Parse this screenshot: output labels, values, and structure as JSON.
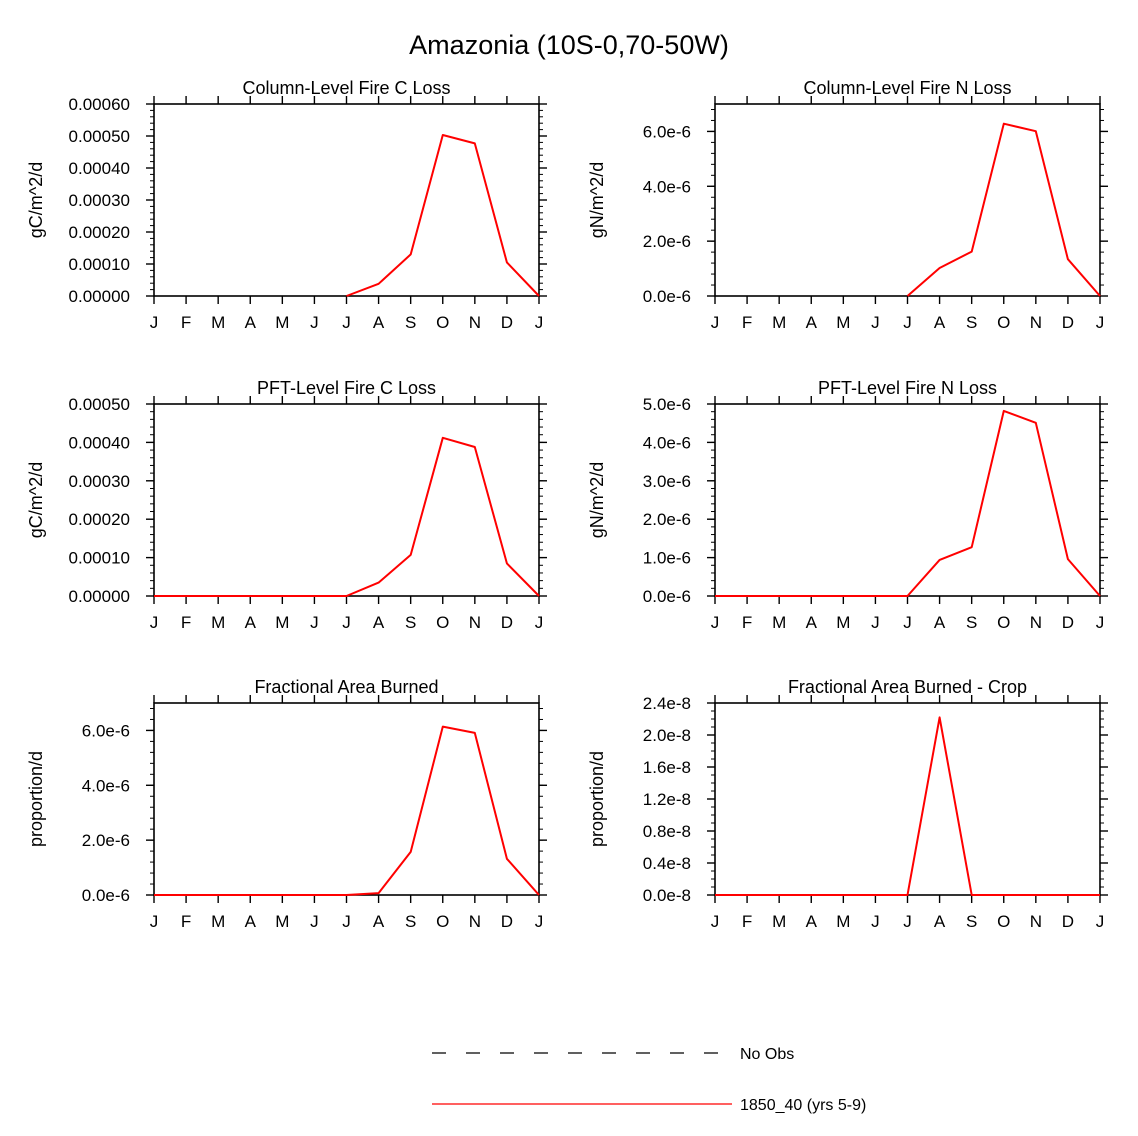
{
  "figure": {
    "title": "Amazonia (10S-0,70-50W)"
  },
  "colors": {
    "series": "#ff0000",
    "axis": "#000000",
    "obs": "#000000"
  },
  "months": [
    "J",
    "F",
    "M",
    "A",
    "M",
    "J",
    "J",
    "A",
    "S",
    "O",
    "N",
    "D",
    "J"
  ],
  "chart_data": [
    {
      "type": "line",
      "title": "Column-Level Fire C Loss",
      "ylabel": "gC/m^2/d",
      "ylim": [
        0,
        0.0006
      ],
      "yticks": [
        0,
        0.0001,
        0.0002,
        0.0003,
        0.0004,
        0.0005,
        0.0006
      ],
      "yticklabels": [
        "0.00000",
        "0.00010",
        "0.00020",
        "0.00030",
        "0.00040",
        "0.00050",
        "0.00060"
      ],
      "minor_per_major": 5,
      "start_index": 6,
      "series": [
        {
          "name": "1850_40 (yrs 5-9)",
          "values": [
            0,
            0,
            0,
            0,
            0,
            0,
            0,
            3.8e-05,
            0.00013,
            0.000503,
            0.000477,
            0.000105,
            0
          ]
        }
      ]
    },
    {
      "type": "line",
      "title": "Column-Level Fire N Loss",
      "ylabel": "gN/m^2/d",
      "ylim": [
        0,
        7e-06
      ],
      "yticks": [
        0,
        2e-06,
        4e-06,
        6e-06
      ],
      "yticklabels": [
        "0.0e-6",
        "2.0e-6",
        "4.0e-6",
        "6.0e-6"
      ],
      "minor_per_major": 5,
      "start_index": 6,
      "series": [
        {
          "name": "1850_40 (yrs 5-9)",
          "values": [
            0,
            0,
            0,
            0,
            0,
            0,
            0,
            1.02e-06,
            1.62e-06,
            6.28e-06,
            6.01e-06,
            1.34e-06,
            0
          ]
        }
      ]
    },
    {
      "type": "line",
      "title": "PFT-Level Fire C Loss",
      "ylabel": "gC/m^2/d",
      "ylim": [
        0,
        0.0005
      ],
      "yticks": [
        0,
        0.0001,
        0.0002,
        0.0003,
        0.0004,
        0.0005
      ],
      "yticklabels": [
        "0.00000",
        "0.00010",
        "0.00020",
        "0.00030",
        "0.00040",
        "0.00050"
      ],
      "minor_per_major": 5,
      "start_index": 0,
      "series": [
        {
          "name": "1850_40 (yrs 5-9)",
          "values": [
            0,
            0,
            0,
            0,
            0,
            0,
            0,
            3.5e-05,
            0.000107,
            0.000412,
            0.000388,
            8.5e-05,
            0
          ]
        }
      ]
    },
    {
      "type": "line",
      "title": "PFT-Level Fire N Loss",
      "ylabel": "gN/m^2/d",
      "ylim": [
        0,
        5e-06
      ],
      "yticks": [
        0,
        1e-06,
        2e-06,
        3e-06,
        4e-06,
        5e-06
      ],
      "yticklabels": [
        "0.0e-6",
        "1.0e-6",
        "2.0e-6",
        "3.0e-6",
        "4.0e-6",
        "5.0e-6"
      ],
      "minor_per_major": 5,
      "start_index": 0,
      "series": [
        {
          "name": "1850_40 (yrs 5-9)",
          "values": [
            0,
            0,
            0,
            0,
            0,
            0,
            0,
            9.4e-07,
            1.27e-06,
            4.82e-06,
            4.51e-06,
            9.6e-07,
            0
          ]
        }
      ]
    },
    {
      "type": "line",
      "title": "Fractional Area Burned",
      "ylabel": "proportion/d",
      "ylim": [
        0,
        7e-06
      ],
      "yticks": [
        0,
        2e-06,
        4e-06,
        6e-06
      ],
      "yticklabels": [
        "0.0e-6",
        "2.0e-6",
        "4.0e-6",
        "6.0e-6"
      ],
      "minor_per_major": 5,
      "start_index": 0,
      "series": [
        {
          "name": "1850_40 (yrs 5-9)",
          "values": [
            0,
            0,
            0,
            0,
            0,
            0,
            0,
            7e-08,
            1.57e-06,
            6.14e-06,
            5.91e-06,
            1.32e-06,
            0
          ]
        }
      ]
    },
    {
      "type": "line",
      "title": "Fractional Area Burned - Crop",
      "ylabel": "proportion/d",
      "ylim": [
        0,
        2.4e-08
      ],
      "yticks": [
        0,
        4e-09,
        8e-09,
        1.2e-08,
        1.6e-08,
        2e-08,
        2.4e-08
      ],
      "yticklabels": [
        "0.0e-8",
        "0.4e-8",
        "0.8e-8",
        "1.2e-8",
        "1.6e-8",
        "2.0e-8",
        "2.4e-8"
      ],
      "minor_per_major": 4,
      "start_index": 0,
      "series": [
        {
          "name": "1850_40 (yrs 5-9)",
          "values": [
            0,
            0,
            0,
            0,
            0,
            0,
            0,
            2.22e-08,
            0,
            0,
            0,
            0,
            0
          ]
        }
      ]
    }
  ],
  "legend": [
    {
      "label": "No Obs",
      "style": "dashed"
    },
    {
      "label": "1850_40 (yrs 5-9)",
      "style": "solid"
    }
  ]
}
